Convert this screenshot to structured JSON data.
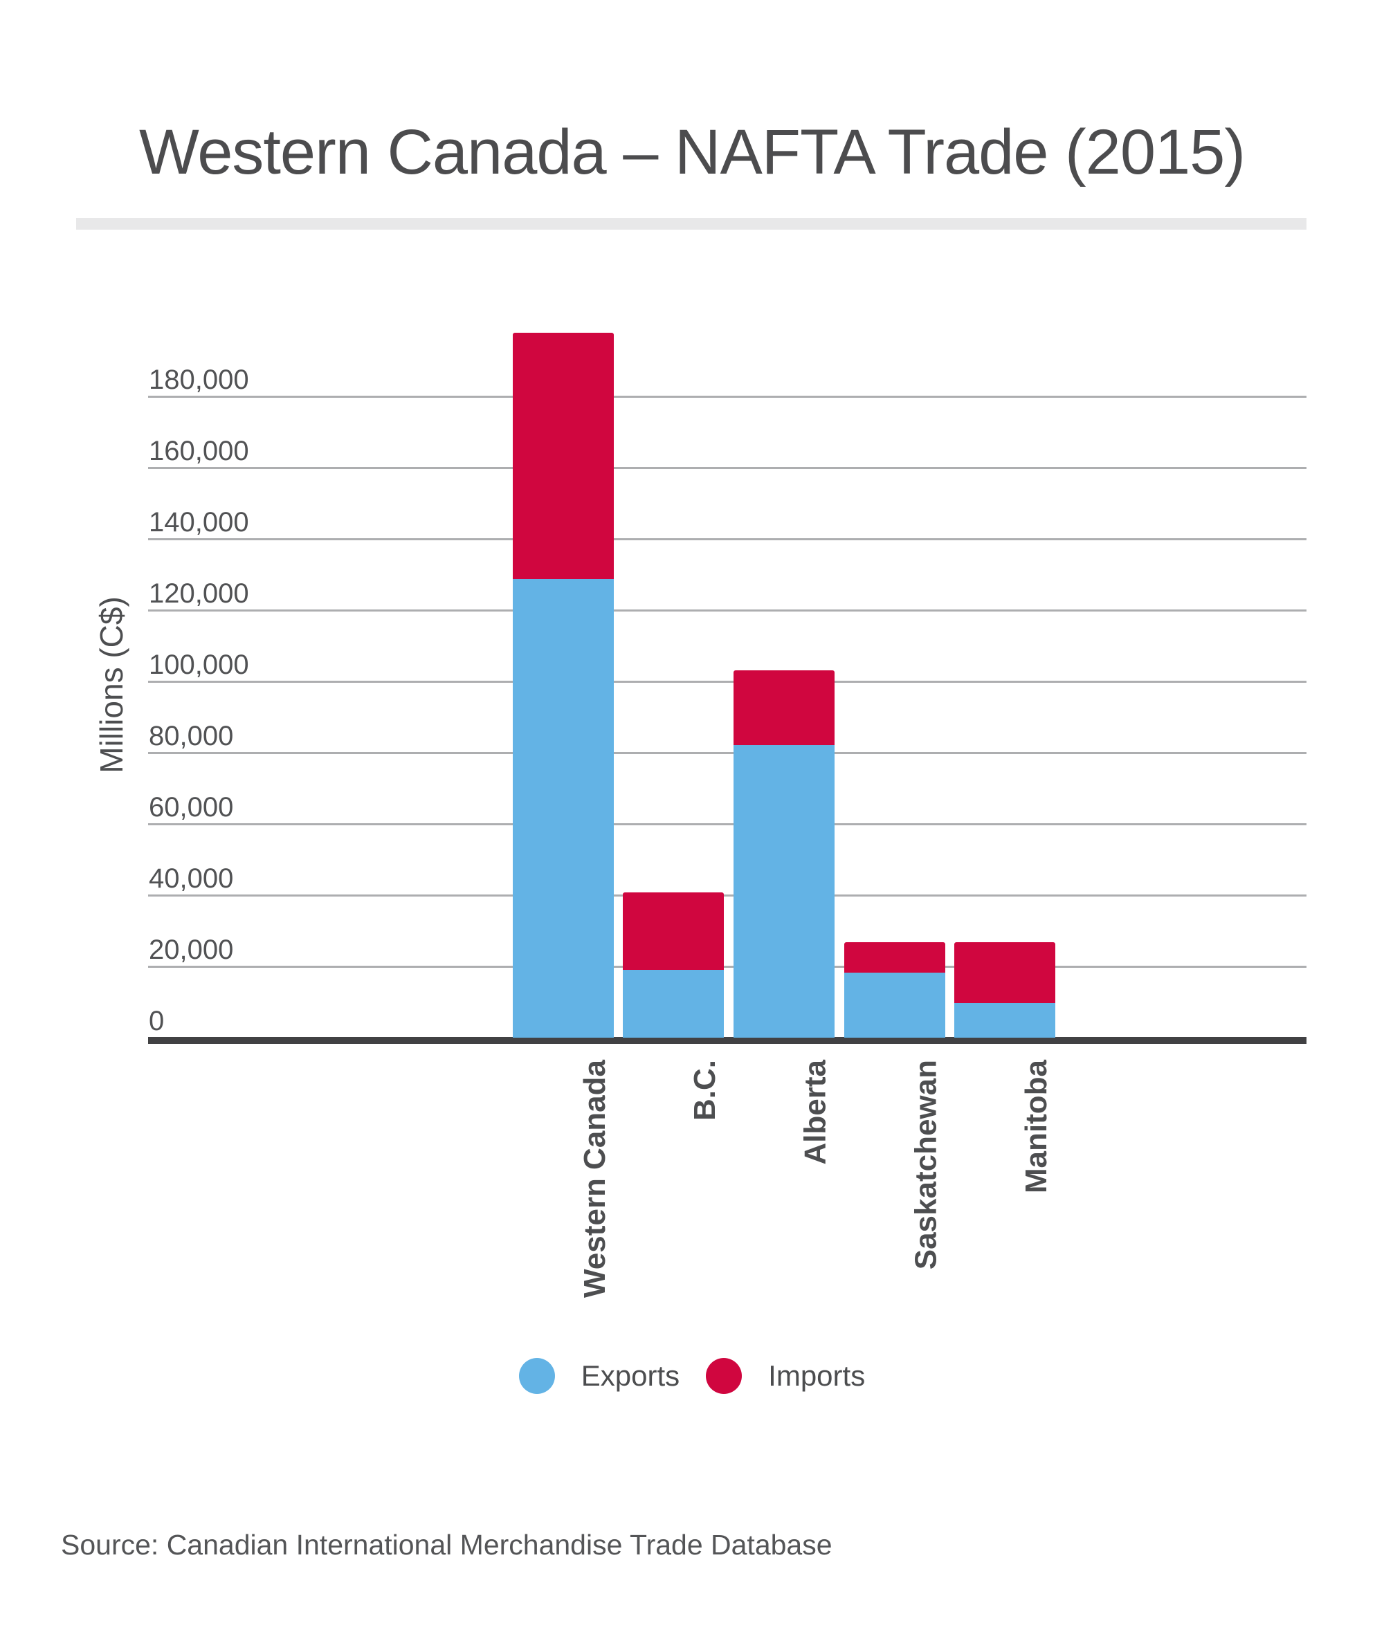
{
  "title": "Western Canada – NAFTA Trade (2015)",
  "source": "Source: Canadian International Merchandise Trade Database",
  "y_axis": {
    "title": "Millions (C$)",
    "tick_values": [
      0,
      20000,
      40000,
      60000,
      80000,
      100000,
      120000,
      140000,
      160000,
      180000
    ],
    "tick_labels": [
      "0",
      "20,000",
      "40,000",
      "60,000",
      "80,000",
      "100,000",
      "120,000",
      "140,000",
      "160,000",
      "180,000"
    ]
  },
  "legend": {
    "items": [
      {
        "label": "Exports",
        "color": "#63b3e5"
      },
      {
        "label": "Imports",
        "color": "#d0063f"
      }
    ]
  },
  "colors": {
    "exports_blue": "#63b3e5",
    "imports_red": "#d0063f",
    "gridline_gray": "#adaeb0",
    "axis_dark": "#414143",
    "text_gray": "#4d4e50"
  },
  "chart_data": {
    "type": "bar",
    "stacked": true,
    "title": "Western Canada – NAFTA Trade (2015)",
    "xlabel": "",
    "ylabel": "Millions (C$)",
    "ylim": [
      0,
      200000
    ],
    "gridline_step": 20000,
    "legend_position": "bottom",
    "grid": true,
    "categories": [
      "Western Canada",
      "B.C.",
      "Alberta",
      "Saskatchewan",
      "Manitoba"
    ],
    "series": [
      {
        "name": "Exports",
        "color": "#63b3e5",
        "values": [
          128700,
          19100,
          82100,
          18300,
          9800
        ]
      },
      {
        "name": "Imports",
        "color": "#d0063f",
        "values": [
          69100,
          21600,
          21000,
          8500,
          17000
        ]
      }
    ],
    "totals": [
      197800,
      40700,
      103100,
      26800,
      26800
    ]
  }
}
